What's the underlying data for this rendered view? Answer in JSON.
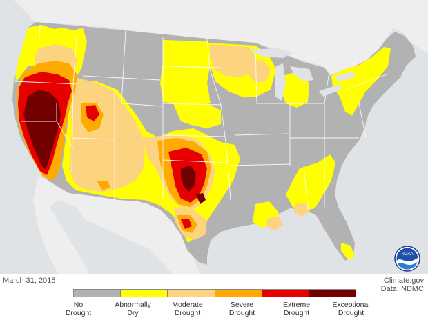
{
  "map": {
    "date": "March 31, 2015",
    "source": "Climate.gov",
    "data_source": "Data: NDMC",
    "logo_text": "NOAA"
  },
  "colors": {
    "no_drought": "#b2b2b2",
    "abnormally_dry": "#ffff00",
    "moderate_drought": "#fcd37f",
    "severe_drought": "#ffaa00",
    "extreme_drought": "#e60000",
    "exceptional_drought": "#730000",
    "land_outside": "#eeeeee",
    "water": "#dfe3e6"
  },
  "legend": [
    {
      "line1": "No",
      "line2": "Drought",
      "color": "#b2b2b2"
    },
    {
      "line1": "Abnormally",
      "line2": "Dry",
      "color": "#ffff00"
    },
    {
      "line1": "Moderate",
      "line2": "Drought",
      "color": "#fcd37f"
    },
    {
      "line1": "Severe",
      "line2": "Drought",
      "color": "#ffaa00"
    },
    {
      "line1": "Extreme",
      "line2": "Drought",
      "color": "#e60000"
    },
    {
      "line1": "Exceptional",
      "line2": "Drought",
      "color": "#730000"
    }
  ]
}
